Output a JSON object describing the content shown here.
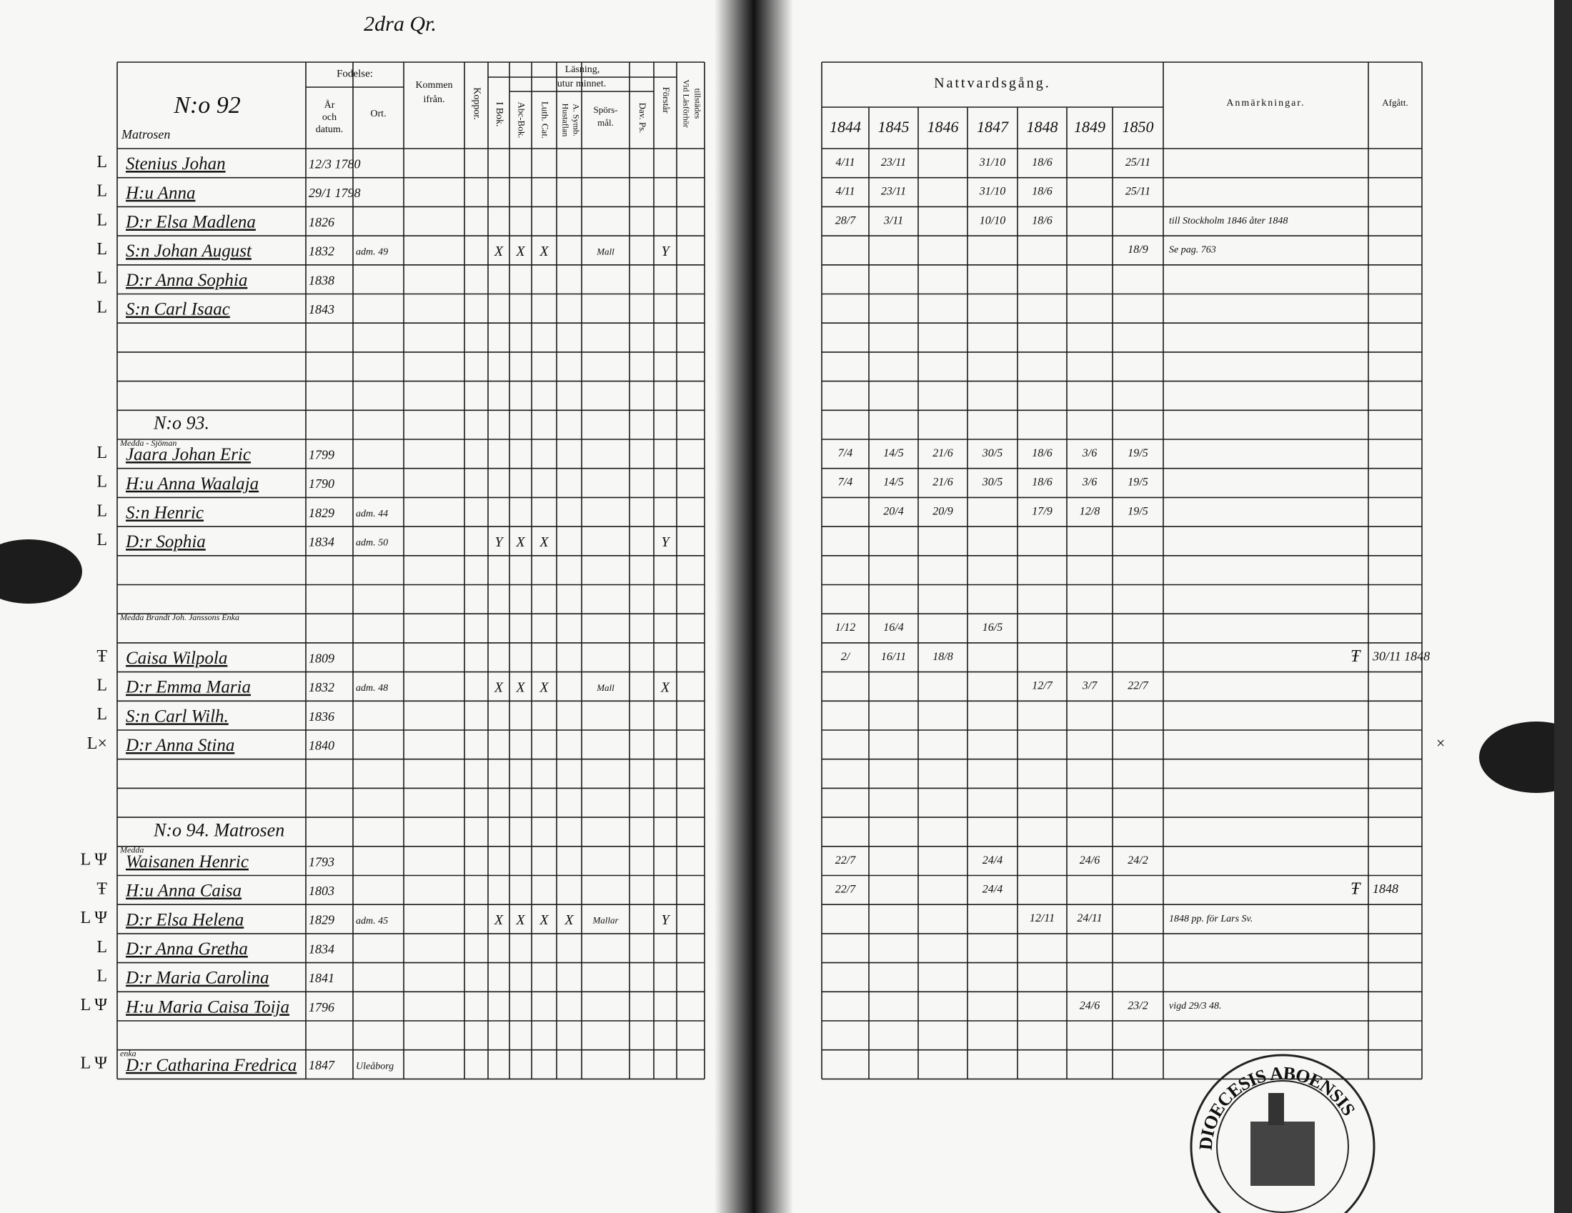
{
  "page_heading": "2dra Qr.",
  "left_header": {
    "number": "N:o 92",
    "occupation": "Matrosen",
    "birth": "Fodelse:",
    "birth_date": [
      "År",
      "och",
      "datum."
    ],
    "birth_place": "Ort.",
    "from": [
      "Kommen",
      "ifrån."
    ],
    "pox": "Koppor.",
    "reading": "Läsning,",
    "by_heart": "utur minnet.",
    "book": "I Bok.",
    "abc": "Abc-Bok.",
    "catechism": "Luth. Cat.",
    "table": [
      "Hustaflan",
      "A. Symb."
    ],
    "questions": [
      "Spörs-",
      "mål."
    ],
    "psalms": "Dav. Ps.",
    "understands": "Förstår",
    "present": [
      "Vid Läsförhör",
      "tillstädes"
    ]
  },
  "right_header": {
    "communion": "Nattvardsgång.",
    "years": [
      "1844",
      "1845",
      "1846",
      "1847",
      "1848",
      "1849",
      "1850"
    ],
    "remarks": "Anmärkningar.",
    "departed": "Afgått."
  },
  "rows": [
    {
      "margin": "L",
      "name": "Stenius Johan",
      "birth": "12/3 1780",
      "communion": [
        "4/11",
        "23/11",
        null,
        "31/10",
        "18/6",
        null,
        "25/11"
      ]
    },
    {
      "margin": "L",
      "name": "H:u Anna",
      "birth": "29/1 1798",
      "communion": [
        "4/11",
        "23/11",
        null,
        "31/10",
        "18/6",
        null,
        "25/11"
      ]
    },
    {
      "margin": "L",
      "name": "D:r Elsa Madlena",
      "birth": "1826",
      "communion": [
        "28/7",
        "3/11",
        null,
        "10/10",
        "18/6",
        null,
        null
      ],
      "remark": "till Stockholm 1846 åter 1848"
    },
    {
      "margin": "L",
      "name": "S:n Johan August",
      "birth": "1832",
      "place": "adm. 49",
      "reading": [
        "X",
        "X",
        "X",
        null,
        "Mall",
        null,
        "Y"
      ],
      "communion": [
        null,
        null,
        null,
        null,
        null,
        null,
        "18/9"
      ],
      "remark": "Se pag. 763"
    },
    {
      "margin": "L",
      "name": "D:r Anna Sophia",
      "birth": "1838"
    },
    {
      "margin": "L",
      "name": "S:n Carl Isaac",
      "birth": "1843"
    },
    null,
    null,
    null,
    {
      "heading": "N:o 93."
    },
    {
      "note": "Medda - Sjöman",
      "margin": "L",
      "name": "Jaara Johan Eric",
      "birth": "1799",
      "communion": [
        "7/4",
        "14/5",
        "21/6",
        "30/5",
        "18/6",
        "3/6",
        "19/5"
      ]
    },
    {
      "margin": "L",
      "name": "H:u Anna Waalaja",
      "birth": "1790",
      "communion": [
        "7/4",
        "14/5",
        "21/6",
        "30/5",
        "18/6",
        "3/6",
        "19/5"
      ]
    },
    {
      "margin": "L",
      "name": "S:n Henric",
      "birth": "1829",
      "place": "adm. 44",
      "communion": [
        null,
        "20/4",
        "20/9",
        null,
        "17/9",
        "12/8",
        "19/5"
      ]
    },
    {
      "margin": "L",
      "name": "D:r Sophia",
      "birth": "1834",
      "place": "adm. 50",
      "reading": [
        "Y",
        "X",
        "X",
        null,
        null,
        null,
        "Y"
      ]
    },
    null,
    null,
    {
      "note": "Medda Brandt Joh. Janssons Enka",
      "communion": [
        "1/12",
        "16/4",
        null,
        "16/5",
        null,
        null,
        null
      ]
    },
    {
      "margin": "Ŧ",
      "name": "Caisa Wilpola",
      "birth": "1809",
      "communion": [
        "2/",
        "16/11",
        "18/8",
        null,
        null,
        null,
        null
      ],
      "remark": "Ŧ",
      "departed": "30/11 1848"
    },
    {
      "margin": "L",
      "name": "D:r Emma Maria",
      "birth": "1832",
      "place": "adm. 48",
      "reading": [
        "X",
        "X",
        "X",
        null,
        "Mall",
        null,
        "X"
      ],
      "communion": [
        null,
        null,
        null,
        null,
        "12/7",
        "3/7",
        "22/7"
      ]
    },
    {
      "margin": "L",
      "name": "S:n Carl Wilh.",
      "birth": "1836"
    },
    {
      "margin": "L×",
      "name": "D:r Anna Stina",
      "birth": "1840",
      "right_mark": "×"
    },
    null,
    null,
    {
      "heading": "N:o 94. Matrosen"
    },
    {
      "note": "Medda",
      "margin": "L Ψ",
      "name": "Waisanen Henric",
      "birth": "1793",
      "communion": [
        "22/7",
        null,
        null,
        "24/4",
        null,
        "24/6",
        "24/2"
      ]
    },
    {
      "margin": "Ŧ",
      "name": "H:u Anna Caisa",
      "birth": "1803",
      "communion": [
        "22/7",
        null,
        null,
        "24/4",
        null,
        null,
        null
      ],
      "remark": "Ŧ",
      "departed": "1848"
    },
    {
      "margin": "L Ψ",
      "name": "D:r Elsa Helena",
      "birth": "1829",
      "place": "adm. 45",
      "reading": [
        "X",
        "X",
        "X",
        "X",
        "Mallar",
        null,
        "Y"
      ],
      "communion": [
        null,
        null,
        null,
        null,
        "12/11",
        "24/11",
        null
      ],
      "remark": "1848 pp. för Lars Sv."
    },
    {
      "margin": "L",
      "name": "D:r Anna Gretha",
      "birth": "1834"
    },
    {
      "margin": "L",
      "name": "D:r Maria Carolina",
      "birth": "1841"
    },
    {
      "margin": "L Ψ",
      "name": "H:u Maria Caisa Toija",
      "birth": "1796",
      "communion": [
        null,
        null,
        null,
        null,
        null,
        "24/6",
        "23/2"
      ],
      "remark": "vigd 29/3 48."
    },
    null,
    {
      "note": "enka",
      "margin": "L Ψ",
      "name": "D:r Catharina Fredrica",
      "birth": "1847",
      "place": "Uleåborg"
    }
  ],
  "stamp": "DIOECESIS ABOENSIS"
}
